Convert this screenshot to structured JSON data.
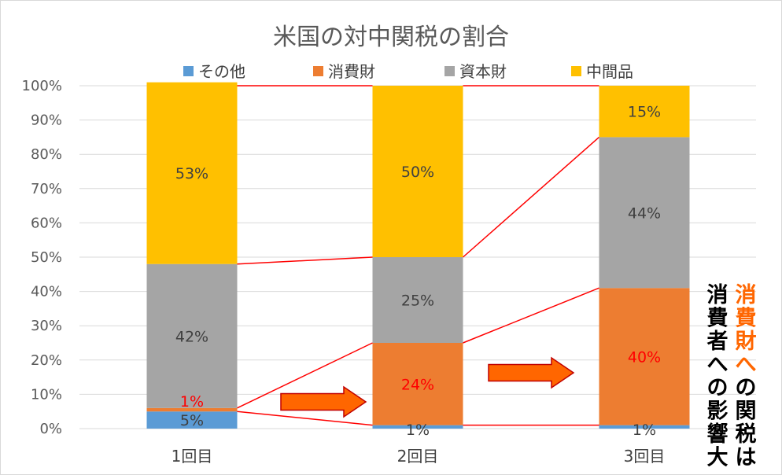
{
  "chart_data": {
    "type": "bar",
    "stacked": true,
    "title": "米国の対中関税の割合",
    "categories": [
      "1回目",
      "2回目",
      "3回目"
    ],
    "series": [
      {
        "name": "その他",
        "color": "#5b9bd5",
        "values": [
          5,
          1,
          1
        ],
        "labels": [
          "5%",
          "1%",
          "1%"
        ]
      },
      {
        "name": "消費財",
        "color": "#ed7d31",
        "values": [
          1,
          24,
          40
        ],
        "labels": [
          "1%",
          "24%",
          "40%"
        ]
      },
      {
        "name": "資本財",
        "color": "#a5a5a5",
        "values": [
          42,
          25,
          44
        ],
        "labels": [
          "42%",
          "25%",
          "44%"
        ]
      },
      {
        "name": "中間品",
        "color": "#ffc000",
        "values": [
          53,
          50,
          15
        ],
        "labels": [
          "53%",
          "50%",
          "15%"
        ]
      }
    ],
    "yticks": [
      "0%",
      "10%",
      "20%",
      "30%",
      "40%",
      "50%",
      "60%",
      "70%",
      "80%",
      "90%",
      "100%"
    ],
    "ylim": [
      0,
      100
    ],
    "grid": true,
    "legend": "top",
    "connector_color": "#ff0000",
    "arrow_color": "#ff6600",
    "annotation": {
      "line1_highlight": "消費財へ",
      "line1_rest": "の関税は",
      "line2": "消費者への影響大",
      "highlight_color": "#ff6600",
      "text_color": "#000000"
    }
  }
}
